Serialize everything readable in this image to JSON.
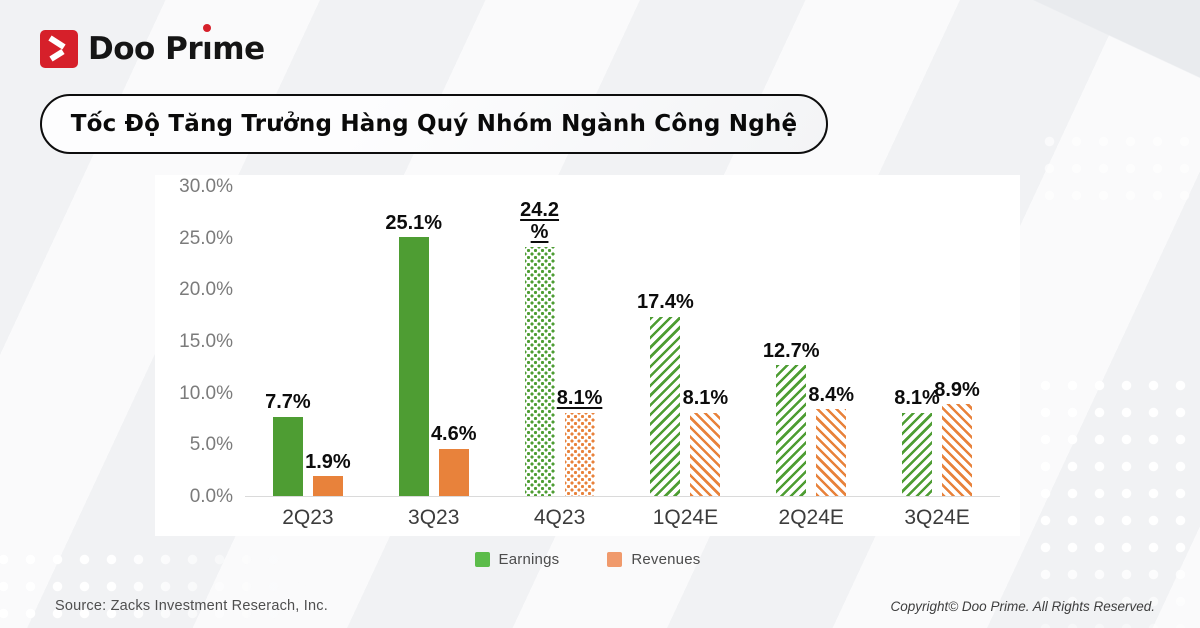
{
  "brand": {
    "logo_text": "Doo Prime",
    "logo_icon": "doo-prime-arrow-icon",
    "logo_color": "#D6202A"
  },
  "title": "Tốc Độ Tăng Trưởng Hàng Quý Nhóm Ngành Công Nghệ",
  "colors": {
    "page_background": "#F1F2F4",
    "card_background": "#FFFFFF",
    "earnings_green": "#4E9D33",
    "revenues_orange": "#E8823B",
    "legend_green": "#5CBC4A",
    "legend_orange": "#F09A6C",
    "axis_text": "#7B7B7B",
    "label_text": "#0C0C0C"
  },
  "chart_data": {
    "type": "bar",
    "title": "Tốc Độ Tăng Trưởng Hàng Quý Nhóm Ngành Công Nghệ",
    "categories": [
      "2Q23",
      "3Q23",
      "4Q23",
      "1Q24E",
      "2Q24E",
      "3Q24E"
    ],
    "series": [
      {
        "name": "Earnings",
        "color": "#4E9D33",
        "legend_color": "#5CBC4A",
        "values": [
          7.7,
          25.1,
          24.2,
          17.4,
          12.7,
          8.1
        ]
      },
      {
        "name": "Revenues",
        "color": "#E8823B",
        "legend_color": "#F09A6C",
        "values": [
          1.9,
          4.6,
          8.1,
          8.1,
          8.4,
          8.9
        ]
      }
    ],
    "label_lines": [
      [
        [
          "7.7%"
        ],
        [
          "1.9%"
        ]
      ],
      [
        [
          "25.1%"
        ],
        [
          "4.6%"
        ]
      ],
      [
        [
          "24.2",
          "%"
        ],
        [
          "8.1%"
        ]
      ],
      [
        [
          "17.4%"
        ],
        [
          "8.1%"
        ]
      ],
      [
        [
          "12.7%"
        ],
        [
          "8.4%"
        ]
      ],
      [
        [
          "8.1%"
        ],
        [
          "8.9%"
        ]
      ]
    ],
    "patterns": [
      "solid",
      "solid",
      "dotted",
      "striped",
      "striped",
      "striped"
    ],
    "emphasized_categories": [
      "4Q23"
    ],
    "ylim": [
      0,
      30
    ],
    "yticks": [
      "30.0%",
      "25.0%",
      "20.0%",
      "15.0%",
      "10.0%",
      "5.0%",
      "0.0%"
    ],
    "grid": false,
    "legend_position": "bottom"
  },
  "footer": {
    "source": "Source: Zacks Investment Reserach, Inc.",
    "copyright": "Copyright© Doo Prime. All Rights Reserved."
  }
}
